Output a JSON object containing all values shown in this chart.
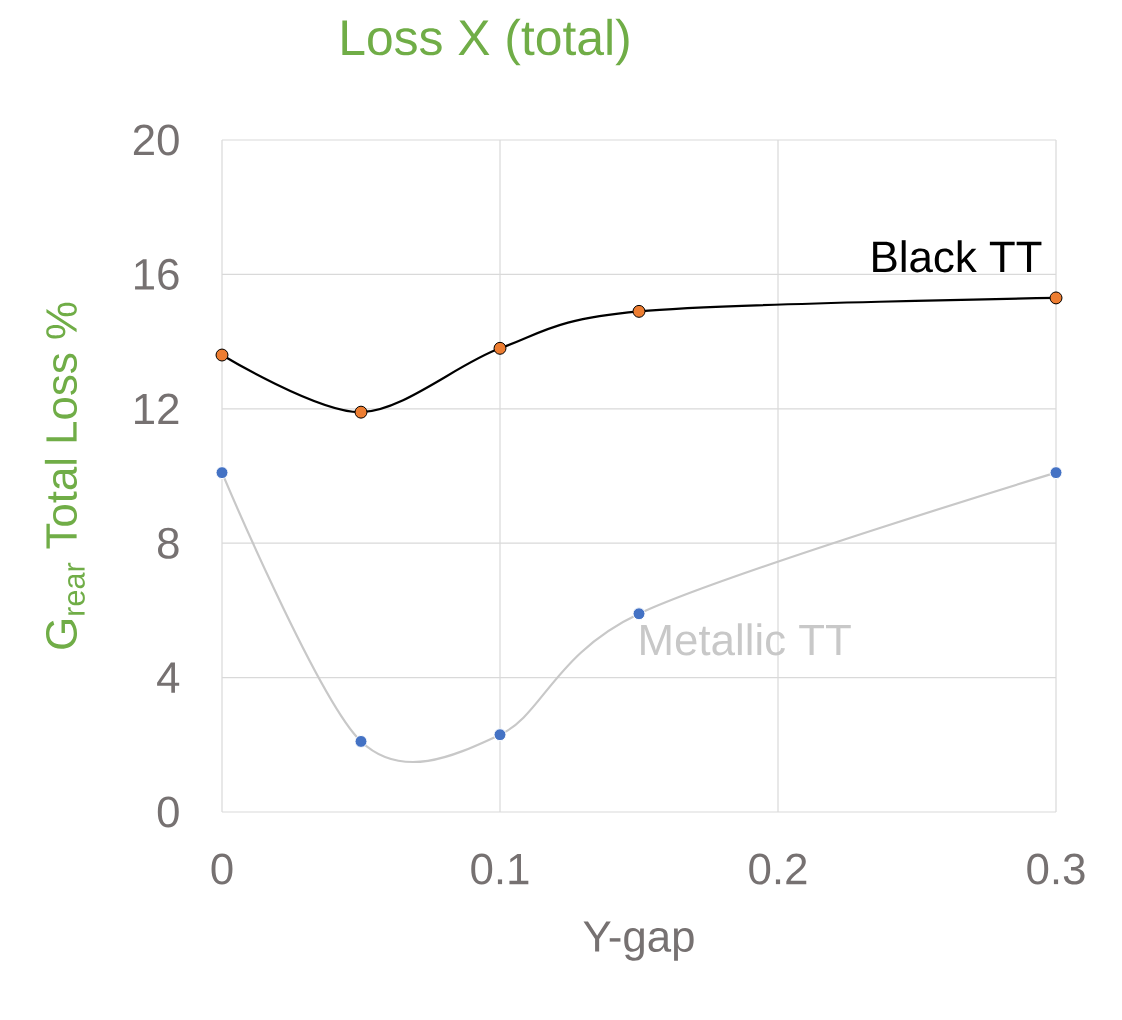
{
  "chart_data": {
    "type": "line",
    "title": "Loss X (total)",
    "xlabel": "Y-gap",
    "ylabel": "G$_{rear}$ Total Loss %",
    "x": [
      0,
      0.05,
      0.1,
      0.15,
      0.3
    ],
    "series": [
      {
        "name": "Black TT",
        "color": "#000000",
        "colors": [
          "#ed7d31",
          "#ed7d31",
          "#ed7d31",
          "#ed7d31",
          "#ed7d31"
        ],
        "values": [
          13.6,
          11.9,
          13.8,
          14.9,
          15.3
        ]
      },
      {
        "name": "Metallic TT",
        "color": "#c8c8c8",
        "colors": [
          "#4472c4",
          "#4472c4",
          "#4472c4",
          "#4472c4",
          "#4472c4"
        ],
        "values": [
          10.1,
          2.1,
          2.3,
          5.9,
          10.1
        ]
      }
    ],
    "xlim": [
      0,
      0.3
    ],
    "ylim": [
      0,
      20
    ],
    "xticks": [
      0,
      0.1,
      0.2,
      0.3
    ],
    "yticks": [
      0,
      4,
      8,
      12,
      16,
      20
    ],
    "grid": true,
    "marker": "circle",
    "line_style": "solid"
  }
}
